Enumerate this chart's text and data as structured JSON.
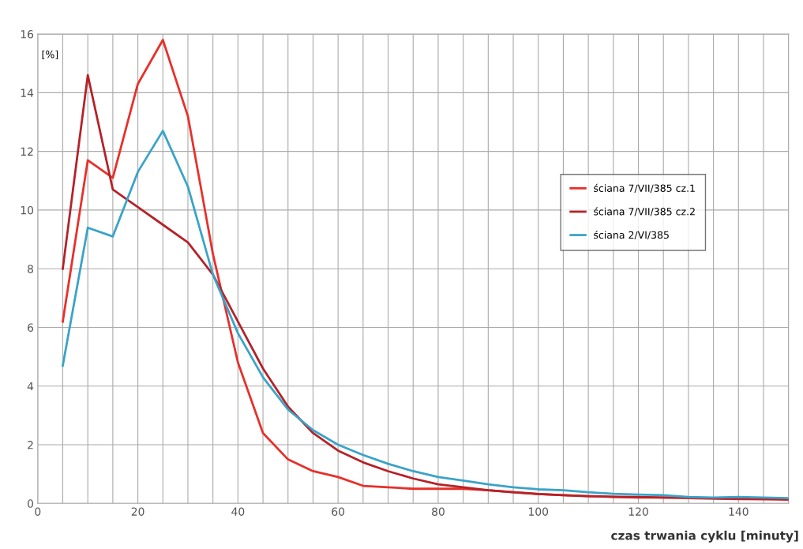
{
  "chart_data": {
    "type": "line",
    "ylabel": "[%]",
    "xlabel": "czas trwania cyklu [minuty]",
    "x": [
      5,
      10,
      15,
      20,
      25,
      30,
      35,
      40,
      45,
      50,
      55,
      60,
      65,
      70,
      75,
      80,
      85,
      90,
      95,
      100,
      105,
      110,
      115,
      120,
      125,
      130,
      135,
      140,
      145,
      150
    ],
    "series": [
      {
        "name": "ściana 7/VII/385 cz.1",
        "color": "#e8302a",
        "values": [
          6.2,
          11.7,
          11.1,
          14.3,
          15.8,
          13.2,
          8.5,
          4.8,
          2.4,
          1.5,
          1.1,
          0.9,
          0.6,
          0.55,
          0.5,
          0.5,
          0.5,
          0.45,
          0.38,
          0.32,
          0.28,
          0.25,
          0.22,
          0.2,
          0.2,
          0.18,
          0.16,
          0.15,
          0.14,
          0.13
        ]
      },
      {
        "name": "ściana 7/VII/385 cz.2",
        "color": "#b52228",
        "values": [
          8.0,
          14.6,
          10.7,
          10.1,
          9.5,
          8.9,
          7.8,
          6.2,
          4.6,
          3.3,
          2.4,
          1.8,
          1.4,
          1.1,
          0.85,
          0.65,
          0.55,
          0.45,
          0.38,
          0.32,
          0.28,
          0.25,
          0.23,
          0.22,
          0.2,
          0.2,
          0.18,
          0.17,
          0.16,
          0.15
        ]
      },
      {
        "name": "ściana 2/VI/385",
        "color": "#3aa3c8",
        "values": [
          4.7,
          9.4,
          9.1,
          11.3,
          12.7,
          10.8,
          7.8,
          5.8,
          4.3,
          3.2,
          2.5,
          2.0,
          1.65,
          1.35,
          1.1,
          0.9,
          0.78,
          0.65,
          0.55,
          0.48,
          0.45,
          0.38,
          0.33,
          0.3,
          0.28,
          0.22,
          0.2,
          0.22,
          0.2,
          0.18
        ]
      }
    ],
    "xlim": [
      0,
      150
    ],
    "ylim": [
      0,
      16
    ],
    "xticks": [
      0,
      {
        "value": 5,
        "label": null
      },
      {
        "value": 10,
        "label": null
      },
      {
        "value": 15,
        "label": null
      },
      20,
      {
        "value": 25,
        "label": null
      },
      {
        "value": 30,
        "label": null
      },
      {
        "value": 35,
        "label": null
      },
      40,
      {
        "value": 45,
        "label": null
      },
      {
        "value": 50,
        "label": null
      },
      {
        "value": 55,
        "label": null
      },
      60,
      {
        "value": 65,
        "label": null
      },
      {
        "value": 70,
        "label": null
      },
      {
        "value": 75,
        "label": null
      },
      80,
      {
        "value": 85,
        "label": null
      },
      {
        "value": 90,
        "label": null
      },
      {
        "value": 95,
        "label": null
      },
      100,
      {
        "value": 105,
        "label": null
      },
      {
        "value": 110,
        "label": null
      },
      {
        "value": 115,
        "label": null
      },
      120,
      {
        "value": 125,
        "label": null
      },
      {
        "value": 130,
        "label": null
      },
      {
        "value": 135,
        "label": null
      },
      140,
      {
        "value": 145,
        "label": null
      },
      {
        "value": 150,
        "label": null
      }
    ],
    "yticks": [
      0,
      2,
      4,
      6,
      8,
      10,
      12,
      14,
      16
    ],
    "grid": true,
    "legend": "right",
    "marker": "none",
    "line_style": "solid"
  }
}
